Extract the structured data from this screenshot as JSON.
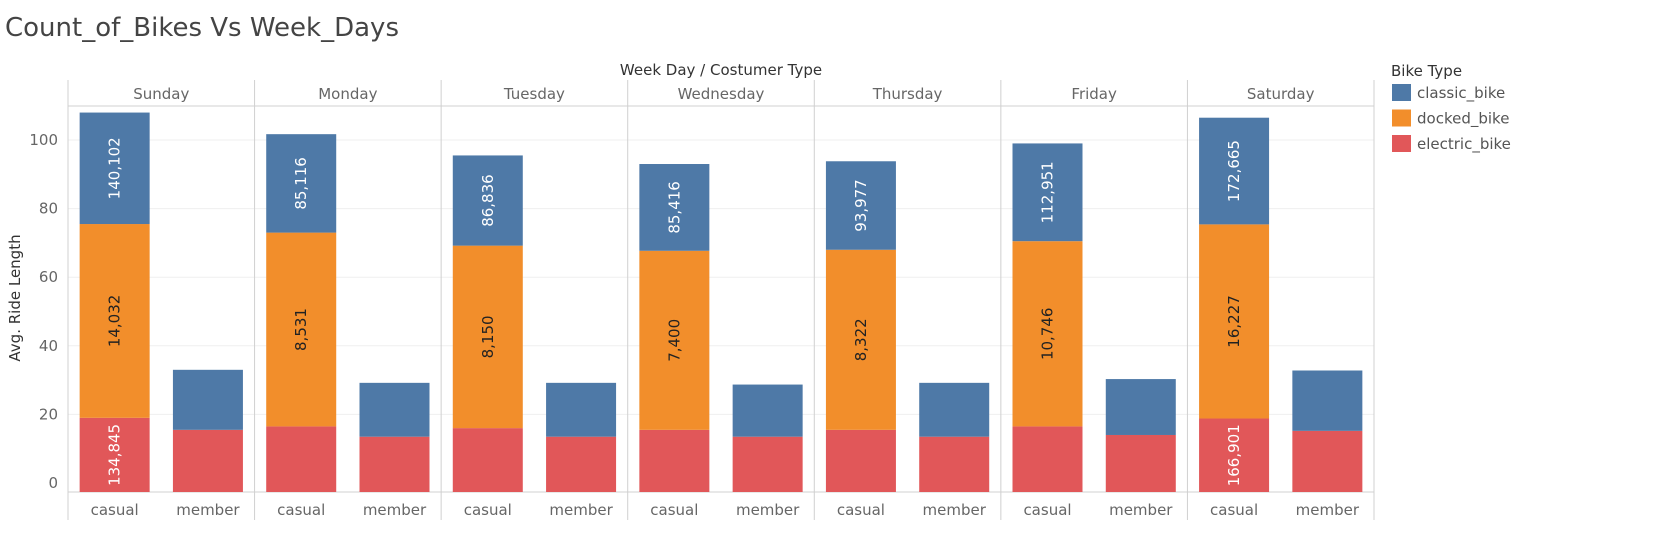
{
  "chart_data": {
    "type": "bar",
    "stacked": true,
    "title": "Count_of_Bikes Vs Week_Days",
    "column_header": "Week Day  /  Costumer Type",
    "ylabel": "Avg. Ride Length",
    "ylim": [
      0,
      110
    ],
    "yticks": [
      0,
      20,
      40,
      60,
      80,
      100
    ],
    "grid": true,
    "legend": {
      "title": "Bike Type",
      "placement": "top-right",
      "items": [
        {
          "name": "classic_bike",
          "color": "#4e79a7"
        },
        {
          "name": "docked_bike",
          "color": "#f28e2b"
        },
        {
          "name": "electric_bike",
          "color": "#e15759"
        }
      ]
    },
    "days": [
      "Sunday",
      "Monday",
      "Tuesday",
      "Wednesday",
      "Thursday",
      "Friday",
      "Saturday"
    ],
    "customer_types": [
      "casual",
      "member"
    ],
    "bars": [
      {
        "day": "Sunday",
        "type": "casual",
        "electric_bike": 19,
        "docked_bike": 56.5,
        "classic_bike": 32.5,
        "labels": {
          "electric_bike": "134,845",
          "docked_bike": "14,032",
          "classic_bike": "140,102"
        }
      },
      {
        "day": "Sunday",
        "type": "member",
        "electric_bike": 15.5,
        "classic_bike": 17.5,
        "labels": {}
      },
      {
        "day": "Monday",
        "type": "casual",
        "electric_bike": 16.5,
        "docked_bike": 56.5,
        "classic_bike": 28.7,
        "labels": {
          "docked_bike": "8,531",
          "classic_bike": "85,116"
        }
      },
      {
        "day": "Monday",
        "type": "member",
        "electric_bike": 13.5,
        "classic_bike": 15.7,
        "labels": {}
      },
      {
        "day": "Tuesday",
        "type": "casual",
        "electric_bike": 16,
        "docked_bike": 53.2,
        "classic_bike": 26.3,
        "labels": {
          "docked_bike": "8,150",
          "classic_bike": "86,836"
        }
      },
      {
        "day": "Tuesday",
        "type": "member",
        "electric_bike": 13.5,
        "classic_bike": 15.7,
        "labels": {}
      },
      {
        "day": "Wednesday",
        "type": "casual",
        "electric_bike": 15.5,
        "docked_bike": 52.2,
        "classic_bike": 25.3,
        "labels": {
          "docked_bike": "7,400",
          "classic_bike": "85,416"
        }
      },
      {
        "day": "Wednesday",
        "type": "member",
        "electric_bike": 13.5,
        "classic_bike": 15.2,
        "labels": {}
      },
      {
        "day": "Thursday",
        "type": "casual",
        "electric_bike": 15.5,
        "docked_bike": 52.5,
        "classic_bike": 25.8,
        "labels": {
          "docked_bike": "8,322",
          "classic_bike": "93,977"
        }
      },
      {
        "day": "Thursday",
        "type": "member",
        "electric_bike": 13.5,
        "classic_bike": 15.7,
        "labels": {}
      },
      {
        "day": "Friday",
        "type": "casual",
        "electric_bike": 16.5,
        "docked_bike": 54,
        "classic_bike": 28.5,
        "labels": {
          "docked_bike": "10,746",
          "classic_bike": "112,951"
        }
      },
      {
        "day": "Friday",
        "type": "member",
        "electric_bike": 14,
        "classic_bike": 16.3,
        "labels": {}
      },
      {
        "day": "Saturday",
        "type": "casual",
        "electric_bike": 18.8,
        "docked_bike": 56.6,
        "classic_bike": 31.1,
        "labels": {
          "electric_bike": "166,901",
          "docked_bike": "16,227",
          "classic_bike": "172,665"
        }
      },
      {
        "day": "Saturday",
        "type": "member",
        "electric_bike": 15.2,
        "classic_bike": 17.6,
        "labels": {}
      }
    ]
  }
}
